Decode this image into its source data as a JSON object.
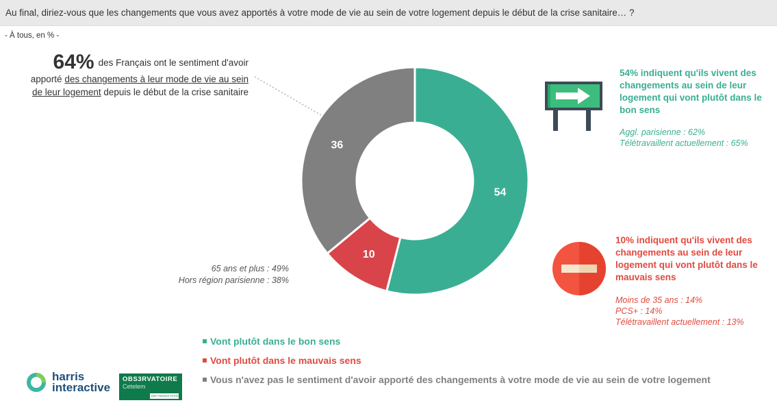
{
  "question": "Au final, diriez-vous que les changements que vous avez apportés à votre mode de vie au sein de votre logement depuis le début de la crise sanitaire… ?",
  "base": "- À tous, en % -",
  "headline": {
    "big": "64%",
    "part1": "des Français ont le sentiment d'avoir apporté ",
    "underlined": "des changements à leur mode de vie au sein de leur logement",
    "part2": " depuis le début de la crise sanitaire"
  },
  "left_note": [
    "65 ans et plus : 49%",
    "Hors région parisienne : 38%"
  ],
  "right_good": {
    "headline": "54% indiquent qu'ils vivent des changements au sein de leur logement qui vont plutôt dans le bon sens",
    "notes": [
      "Aggl. parisienne : 62%",
      "Télétravaillent actuellement : 65%"
    ],
    "icon": "arrow-sign-icon"
  },
  "right_bad": {
    "headline": "10% indiquent qu'ils vivent des changements au sein de leur logement qui vont plutôt dans le mauvais sens",
    "notes": [
      "Moins de 35 ans : 14%",
      "PCS+ : 14%",
      "Télétravaillent actuellement : 13%"
    ],
    "icon": "no-entry-icon"
  },
  "legend": [
    {
      "label": "Vont plutôt dans le bon sens",
      "color": "#3aae93"
    },
    {
      "label": "Vont plutôt dans le mauvais sens",
      "color": "#e14a3f"
    },
    {
      "label": "Vous n'avez pas le sentiment d'avoir apporté des changements à votre mode de vie au sein de votre logement",
      "color": "#7f7f7f"
    }
  ],
  "logos": {
    "harris": [
      "harris",
      "interactive"
    ],
    "observatoire": {
      "title": "OBS3RVATOIRE",
      "sub": "Cetelem",
      "foot": "BNP PARIBAS PERSONAL FINANCE"
    }
  },
  "chart_data": {
    "type": "pie",
    "donut": true,
    "categories": [
      "Vont plutôt dans le bon sens",
      "Vont plutôt dans le mauvais sens",
      "Vous n'avez pas le sentiment d'avoir apporté des changements à votre mode de vie au sein de votre logement"
    ],
    "values": [
      54,
      10,
      36
    ],
    "colors": [
      "#3aae93",
      "#d9444a",
      "#808080"
    ],
    "data_labels": [
      "54",
      "10",
      "36"
    ]
  }
}
